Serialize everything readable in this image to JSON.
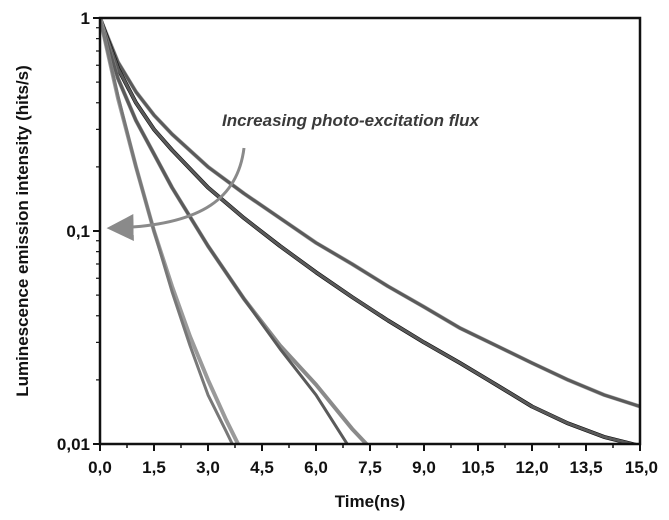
{
  "chart_data": {
    "type": "line",
    "title": "",
    "xlabel": "Time(ns)",
    "ylabel": "Luminescence emission intensity (hits/s)",
    "x_scale": "linear",
    "y_scale": "log",
    "xlim": [
      0,
      15
    ],
    "ylim": [
      0.01,
      1
    ],
    "x_ticks": [
      0,
      1.5,
      3,
      4.5,
      6,
      7.5,
      9,
      10.5,
      12,
      13.5,
      15
    ],
    "x_tick_labels": [
      "0,0",
      "1,5",
      "3,0",
      "4,5",
      "6,0",
      "7,5",
      "9,0",
      "10,5",
      "12,0",
      "13,5",
      "15,0"
    ],
    "y_ticks": [
      0.01,
      0.1,
      1
    ],
    "y_tick_labels": [
      "0,01",
      "0,1",
      "1"
    ],
    "grid": false,
    "annotation": "Increasing photo-excitation flux",
    "series": [
      {
        "style": "measured (noisy, light grey)",
        "color": "#a0a0a0",
        "x": [
          0,
          0.5,
          1,
          1.5,
          2,
          3,
          4,
          5,
          6,
          7,
          8,
          9,
          10,
          11,
          12,
          13,
          14,
          15
        ],
        "y": [
          1,
          0.62,
          0.45,
          0.35,
          0.285,
          0.2,
          0.15,
          0.115,
          0.088,
          0.07,
          0.055,
          0.044,
          0.035,
          0.029,
          0.024,
          0.02,
          0.017,
          0.015
        ]
      },
      {
        "style": "fit (dark grey)",
        "color": "#5a5a5a",
        "x": [
          0,
          0.5,
          1,
          1.5,
          2,
          3,
          4,
          5,
          6,
          7,
          8,
          9,
          10,
          11,
          12,
          13,
          14,
          15
        ],
        "y": [
          1,
          0.62,
          0.45,
          0.35,
          0.285,
          0.2,
          0.15,
          0.115,
          0.088,
          0.07,
          0.055,
          0.044,
          0.035,
          0.029,
          0.024,
          0.02,
          0.017,
          0.015
        ]
      },
      {
        "style": "measured (noisy, black)",
        "color": "#000000",
        "x": [
          0,
          0.5,
          1,
          1.5,
          2,
          3,
          4,
          5,
          6,
          7,
          8,
          9,
          10,
          11,
          12,
          13,
          14,
          15
        ],
        "y": [
          1,
          0.58,
          0.4,
          0.3,
          0.24,
          0.16,
          0.115,
          0.085,
          0.064,
          0.049,
          0.038,
          0.03,
          0.024,
          0.019,
          0.015,
          0.0125,
          0.0108,
          0.0098
        ]
      },
      {
        "style": "fit (dark grey)",
        "color": "#5a5a5a",
        "x": [
          0,
          0.5,
          1,
          1.5,
          2,
          3,
          4,
          5,
          6,
          7,
          8,
          9,
          10,
          11,
          12,
          13,
          14,
          15
        ],
        "y": [
          1,
          0.58,
          0.4,
          0.3,
          0.24,
          0.16,
          0.115,
          0.085,
          0.064,
          0.049,
          0.038,
          0.03,
          0.024,
          0.019,
          0.015,
          0.0125,
          0.0108,
          0.0098
        ]
      },
      {
        "style": "measured (noisy, grey)",
        "color": "#8a8a8a",
        "x": [
          0,
          0.5,
          1,
          1.5,
          2,
          3,
          4,
          5,
          6,
          7,
          7.5
        ],
        "y": [
          1,
          0.52,
          0.33,
          0.23,
          0.16,
          0.085,
          0.048,
          0.029,
          0.019,
          0.0118,
          0.0096
        ]
      },
      {
        "style": "fit (dark grey)",
        "color": "#5a5a5a",
        "x": [
          0,
          0.5,
          1,
          1.5,
          2,
          3,
          4,
          5,
          6,
          6.9
        ],
        "y": [
          1,
          0.52,
          0.33,
          0.23,
          0.16,
          0.085,
          0.048,
          0.028,
          0.017,
          0.0098
        ]
      },
      {
        "style": "measured (noisy, light grey)",
        "color": "#9a9a9a",
        "x": [
          0,
          0.5,
          1,
          1.5,
          2,
          2.5,
          3,
          3.5,
          3.9
        ],
        "y": [
          1,
          0.42,
          0.2,
          0.1,
          0.055,
          0.032,
          0.02,
          0.013,
          0.0095
        ]
      },
      {
        "style": "fit (grey)",
        "color": "#787878",
        "x": [
          0,
          0.5,
          1,
          1.5,
          2,
          2.5,
          3,
          3.5,
          3.7
        ],
        "y": [
          1,
          0.43,
          0.2,
          0.1,
          0.052,
          0.029,
          0.017,
          0.0115,
          0.0098
        ]
      }
    ]
  }
}
